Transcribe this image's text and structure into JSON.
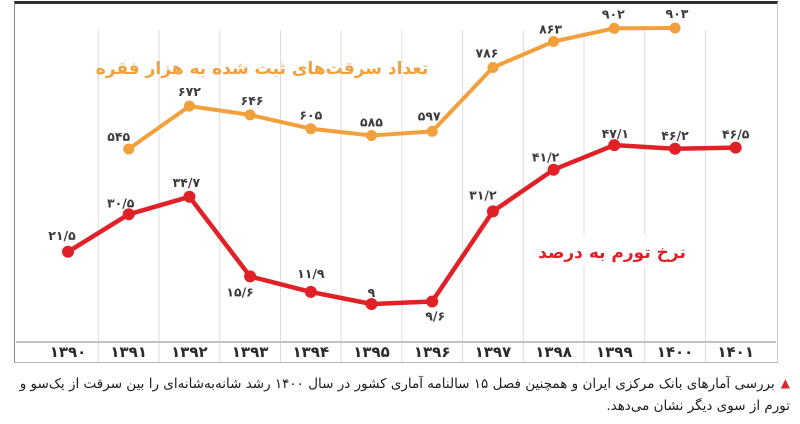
{
  "chart_data": {
    "type": "line",
    "title": "تعداد سرقت‌های ثبت شده به هزار فقره / نرخ تورم به درصد",
    "categories": [
      "۱۳۹۰",
      "۱۳۹۱",
      "۱۳۹۲",
      "۱۳۹۳",
      "۱۳۹۴",
      "۱۳۹۵",
      "۱۳۹۶",
      "۱۳۹۷",
      "۱۳۹۸",
      "۱۳۹۹",
      "۱۴۰۰",
      "۱۴۰۱"
    ],
    "years": [
      1390,
      1391,
      1392,
      1393,
      1394,
      1395,
      1396,
      1397,
      1398,
      1399,
      1400,
      1401
    ],
    "grid": "vertical-separators",
    "grid_color": "#dcdcdc",
    "axis_color": "#c2c2c2",
    "legend_position": "inline-titles",
    "series": [
      {
        "key": "thefts",
        "name": "تعداد سرقت‌های ثبت شده به هزار فقره",
        "color": "#F2A03C",
        "start_index": 1,
        "values": [
          545,
          672,
          646,
          605,
          585,
          597,
          786,
          863,
          902,
          903
        ],
        "labels": [
          "۵۴۵",
          "۶۷۲",
          "۶۴۶",
          "۶۰۵",
          "۵۸۵",
          "۵۹۷",
          "۷۸۶",
          "۸۶۳",
          "۹۰۲",
          "۹۰۳"
        ],
        "label_offsets": [
          [
            -10,
            -8
          ],
          [
            0,
            -10
          ],
          [
            2,
            -10
          ],
          [
            0,
            -9
          ],
          [
            0,
            -9
          ],
          [
            -3,
            -11
          ],
          [
            -6,
            -10
          ],
          [
            -3,
            -8
          ],
          [
            -1,
            -10
          ],
          [
            2,
            -10
          ]
        ],
        "ylim_hint": [
          0,
          986
        ]
      },
      {
        "key": "inflation",
        "name": "نرخ تورم به درصد",
        "color": "#E02128",
        "start_index": 0,
        "values": [
          21.5,
          30.5,
          34.7,
          15.6,
          11.9,
          9,
          9.6,
          31.2,
          41.2,
          47.1,
          46.2,
          46.5
        ],
        "labels": [
          "۲۱/۵",
          "۳۰/۵",
          "۳۴/۷",
          "۱۵/۶",
          "۱۱/۹",
          "۹",
          "۹/۶",
          "۳۱/۲",
          "۴۱/۲",
          "۴۷/۱",
          "۴۶/۲",
          "۴۶/۵"
        ],
        "label_offsets": [
          [
            -6,
            -12
          ],
          [
            -8,
            -7
          ],
          [
            -3,
            -10
          ],
          [
            -10,
            20
          ],
          [
            0,
            -14
          ],
          [
            0,
            -7
          ],
          [
            3,
            19
          ],
          [
            -10,
            -12
          ],
          [
            -8,
            -8
          ],
          [
            1,
            -7
          ],
          [
            0,
            -9
          ],
          [
            0,
            -9
          ]
        ],
        "ylim_hint": [
          0,
          82
        ]
      }
    ]
  },
  "caption": {
    "bullet": "▲",
    "text": "بررسی آمارهای بانک مرکزی ایران و همچنین فصل ۱۵ سالنامه آماری کشور در سال ۱۴۰۰ رشد شانه‌به‌شانه‌ای را بین سرقت از یک‌سو و تورم از سوی دیگر نشان می‌دهد."
  }
}
